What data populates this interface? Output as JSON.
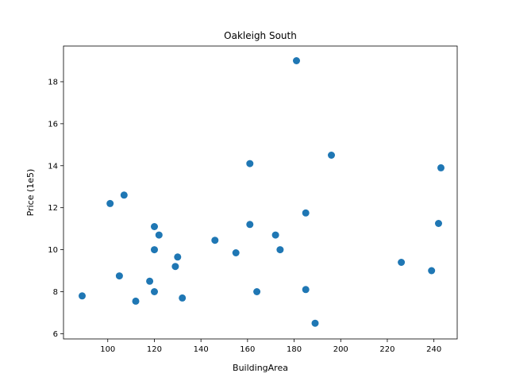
{
  "chart_data": {
    "type": "scatter",
    "title": "Oakleigh South",
    "xlabel": "BuildingArea",
    "ylabel": "Price (1e5)",
    "xlim": [
      81,
      250
    ],
    "ylim": [
      5.75,
      19.7
    ],
    "xticks": [
      100,
      120,
      140,
      160,
      180,
      200,
      220,
      240
    ],
    "yticks": [
      6,
      8,
      10,
      12,
      14,
      16,
      18
    ],
    "xtick_labels": [
      "100",
      "120",
      "140",
      "160",
      "180",
      "200",
      "220",
      "240"
    ],
    "ytick_labels": [
      "6",
      "8",
      "10",
      "12",
      "14",
      "16",
      "18"
    ],
    "grid": false,
    "marker_color": "#1f77b4",
    "points": [
      {
        "x": 89,
        "y": 7.8
      },
      {
        "x": 101,
        "y": 12.2
      },
      {
        "x": 105,
        "y": 8.75
      },
      {
        "x": 107,
        "y": 12.6
      },
      {
        "x": 112,
        "y": 7.55
      },
      {
        "x": 118,
        "y": 8.5
      },
      {
        "x": 120,
        "y": 11.1
      },
      {
        "x": 120,
        "y": 10.0
      },
      {
        "x": 120,
        "y": 8.0
      },
      {
        "x": 122,
        "y": 10.7
      },
      {
        "x": 129,
        "y": 9.2
      },
      {
        "x": 130,
        "y": 9.65
      },
      {
        "x": 132,
        "y": 7.7
      },
      {
        "x": 146,
        "y": 10.45
      },
      {
        "x": 155,
        "y": 9.85
      },
      {
        "x": 161,
        "y": 14.1
      },
      {
        "x": 161,
        "y": 11.2
      },
      {
        "x": 164,
        "y": 8.0
      },
      {
        "x": 172,
        "y": 10.7
      },
      {
        "x": 174,
        "y": 10.0
      },
      {
        "x": 181,
        "y": 19.0
      },
      {
        "x": 185,
        "y": 11.75
      },
      {
        "x": 185,
        "y": 8.1
      },
      {
        "x": 189,
        "y": 6.5
      },
      {
        "x": 196,
        "y": 14.5
      },
      {
        "x": 226,
        "y": 9.4
      },
      {
        "x": 239,
        "y": 9.0
      },
      {
        "x": 242,
        "y": 11.25
      },
      {
        "x": 243,
        "y": 13.9
      }
    ]
  }
}
